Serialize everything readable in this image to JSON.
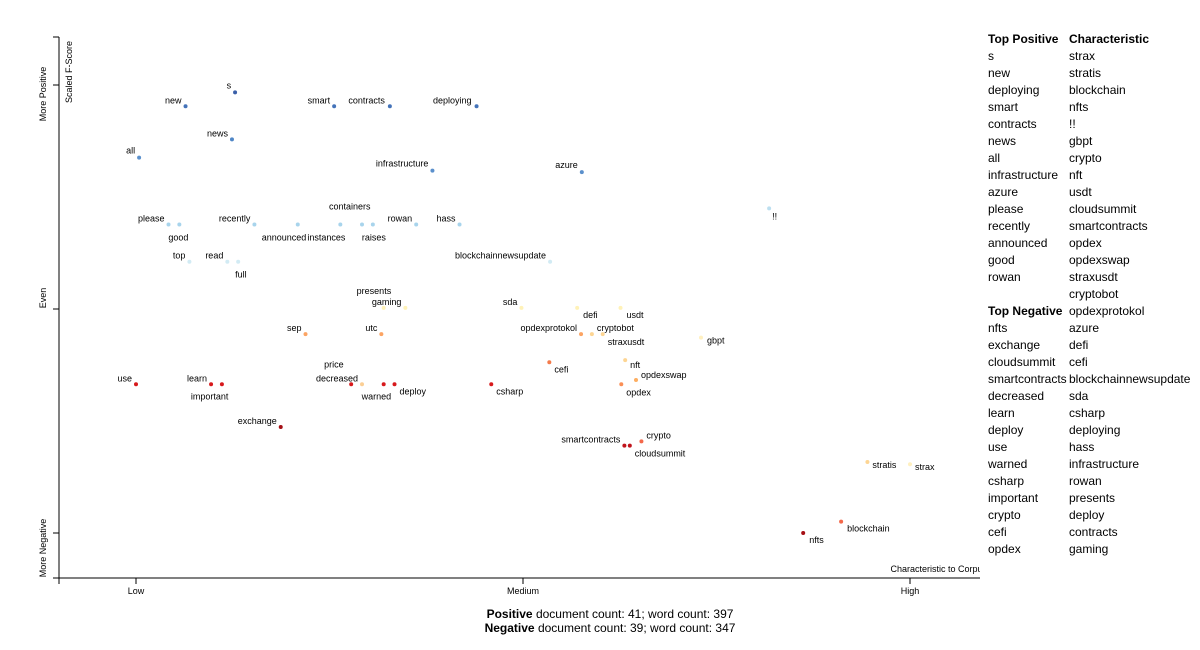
{
  "chart_data": {
    "type": "scatter",
    "x_axis": {
      "tick_labels": [
        "Low",
        "Medium",
        "High"
      ],
      "corner_label": "Characteristic to Corpus"
    },
    "y_axis": {
      "label": "Scaled F-Score",
      "tick_labels": [
        "More Positive",
        "Even",
        "More Negative"
      ]
    },
    "points": [
      {
        "term": "s",
        "x": 0.128,
        "y": 0.967,
        "color": "#3a5fa8"
      },
      {
        "term": "new",
        "x": 0.064,
        "y": 0.905,
        "color": "#4473b9"
      },
      {
        "term": "smart",
        "x": 0.256,
        "y": 0.905,
        "color": "#4473b9"
      },
      {
        "term": "contracts",
        "x": 0.328,
        "y": 0.905,
        "color": "#4473b9"
      },
      {
        "term": "deploying",
        "x": 0.44,
        "y": 0.905,
        "color": "#4473b9"
      },
      {
        "term": "news",
        "x": 0.124,
        "y": 0.757,
        "color": "#4f86c6"
      },
      {
        "term": "all",
        "x": 0.004,
        "y": 0.676,
        "color": "#5b90cc"
      },
      {
        "term": "infrastructure",
        "x": 0.383,
        "y": 0.618,
        "color": "#5b90cc"
      },
      {
        "term": "azure",
        "x": 0.576,
        "y": 0.611,
        "color": "#5b90cc"
      },
      {
        "term": "!!",
        "x": 0.818,
        "y": 0.449,
        "color": "#bcdff0"
      },
      {
        "term": "please",
        "x": 0.042,
        "y": 0.377,
        "color": "#a8d4ec"
      },
      {
        "term": "good",
        "x": 0.056,
        "y": 0.377,
        "color": "#a8d4ec"
      },
      {
        "term": "recently",
        "x": 0.153,
        "y": 0.377,
        "color": "#a8d4ec"
      },
      {
        "term": "announced",
        "x": 0.209,
        "y": 0.377,
        "color": "#a8d4ec"
      },
      {
        "term": "instances",
        "x": 0.264,
        "y": 0.377,
        "color": "#a8d4ec"
      },
      {
        "term": "containers",
        "x": 0.292,
        "y": 0.377,
        "color": "#a8d4ec"
      },
      {
        "term": "raises",
        "x": 0.306,
        "y": 0.377,
        "color": "#a8d4ec"
      },
      {
        "term": "rowan",
        "x": 0.362,
        "y": 0.377,
        "color": "#a8d4ec"
      },
      {
        "term": "hass",
        "x": 0.418,
        "y": 0.377,
        "color": "#a8d4ec"
      },
      {
        "term": "top",
        "x": 0.069,
        "y": 0.211,
        "color": "#d2ebf4"
      },
      {
        "term": "read",
        "x": 0.118,
        "y": 0.211,
        "color": "#d2ebf4"
      },
      {
        "term": "full",
        "x": 0.132,
        "y": 0.211,
        "color": "#d2ebf4"
      },
      {
        "term": "blockchainnewsupdate",
        "x": 0.535,
        "y": 0.211,
        "color": "#d2ebf4"
      },
      {
        "term": "presents",
        "x": 0.32,
        "y": 0.005,
        "color": "#fff2b8"
      },
      {
        "term": "gaming",
        "x": 0.348,
        "y": 0.005,
        "color": "#fff2b8"
      },
      {
        "term": "sda",
        "x": 0.498,
        "y": 0.005,
        "color": "#fff2b8"
      },
      {
        "term": "defi",
        "x": 0.57,
        "y": 0.005,
        "color": "#fff2b8"
      },
      {
        "term": "usdt",
        "x": 0.626,
        "y": 0.005,
        "color": "#fff2b8"
      },
      {
        "term": "sep",
        "x": 0.219,
        "y": -0.112,
        "color": "#fca463"
      },
      {
        "term": "utc",
        "x": 0.317,
        "y": -0.112,
        "color": "#fca463"
      },
      {
        "term": "opdexprotokol",
        "x": 0.575,
        "y": -0.112,
        "color": "#fca463"
      },
      {
        "term": "cryptobot",
        "x": 0.589,
        "y": -0.112,
        "color": "#fdd593"
      },
      {
        "term": "straxusdt",
        "x": 0.603,
        "y": -0.112,
        "color": "#fdd593"
      },
      {
        "term": "gbpt",
        "x": 0.73,
        "y": -0.128,
        "color": "#fff0c0"
      },
      {
        "term": "cefi",
        "x": 0.534,
        "y": -0.238,
        "color": "#f47b4b"
      },
      {
        "term": "nft",
        "x": 0.632,
        "y": -0.228,
        "color": "#fdd593"
      },
      {
        "term": "opdexswap",
        "x": 0.646,
        "y": -0.317,
        "color": "#fdae61"
      },
      {
        "term": "opdex",
        "x": 0.627,
        "y": -0.336,
        "color": "#fa8f55"
      },
      {
        "term": "use",
        "x": 0.0,
        "y": -0.336,
        "color": "#d7191c"
      },
      {
        "term": "learn",
        "x": 0.097,
        "y": -0.336,
        "color": "#d7191c"
      },
      {
        "term": "important",
        "x": 0.111,
        "y": -0.336,
        "color": "#d7191c"
      },
      {
        "term": "price",
        "x": 0.278,
        "y": -0.336,
        "color": "#d7191c"
      },
      {
        "term": "decreased",
        "x": 0.292,
        "y": -0.336,
        "color": "#fbcf95"
      },
      {
        "term": "warned",
        "x": 0.32,
        "y": -0.336,
        "color": "#d7191c"
      },
      {
        "term": "deploy",
        "x": 0.334,
        "y": -0.336,
        "color": "#d7191c"
      },
      {
        "term": "csharp",
        "x": 0.459,
        "y": -0.336,
        "color": "#d7191c"
      },
      {
        "term": "exchange",
        "x": 0.187,
        "y": -0.527,
        "color": "#a50f15"
      },
      {
        "term": "crypto",
        "x": 0.653,
        "y": -0.591,
        "color": "#f4684a"
      },
      {
        "term": "smartcontracts",
        "x": 0.631,
        "y": -0.61,
        "color": "#c0141c"
      },
      {
        "term": "cloudsummit",
        "x": 0.638,
        "y": -0.61,
        "color": "#c0141c"
      },
      {
        "term": "stratis",
        "x": 0.945,
        "y": -0.683,
        "color": "#fdd593"
      },
      {
        "term": "strax",
        "x": 1.0,
        "y": -0.693,
        "color": "#fff0c0"
      },
      {
        "term": "blockchain",
        "x": 0.911,
        "y": -0.949,
        "color": "#f4684a"
      },
      {
        "term": "nfts",
        "x": 0.862,
        "y": -1.0,
        "color": "#a50f15"
      }
    ]
  },
  "sidebar": {
    "top_positive_title": "Top Positive",
    "top_positive": [
      "s",
      "new",
      "deploying",
      "smart",
      "contracts",
      "news",
      "all",
      "infrastructure",
      "azure",
      "please",
      "recently",
      "announced",
      "good",
      "rowan"
    ],
    "top_negative_title": "Top Negative",
    "top_negative": [
      "nfts",
      "exchange",
      "cloudsummit",
      "smartcontracts",
      "decreased",
      "learn",
      "deploy",
      "use",
      "warned",
      "csharp",
      "important",
      "crypto",
      "cefi",
      "opdex"
    ],
    "characteristic_title": "Characteristic",
    "characteristic": [
      "strax",
      "stratis",
      "blockchain",
      "nfts",
      "!!",
      "gbpt",
      "crypto",
      "nft",
      "usdt",
      "cloudsummit",
      "smartcontracts",
      "opdex",
      "opdexswap",
      "straxusdt",
      "cryptobot",
      "opdexprotokol",
      "azure",
      "defi",
      "cefi",
      "blockchainnewsupdate",
      "sda",
      "csharp",
      "deploying",
      "hass",
      "infrastructure",
      "rowan",
      "presents",
      "deploy",
      "contracts",
      "gaming"
    ]
  },
  "footer": {
    "positive_word": "Positive",
    "positive_rest": "document count: 41; word count: 397",
    "negative_word": "Negative",
    "negative_rest": "document count: 39; word count: 347"
  }
}
